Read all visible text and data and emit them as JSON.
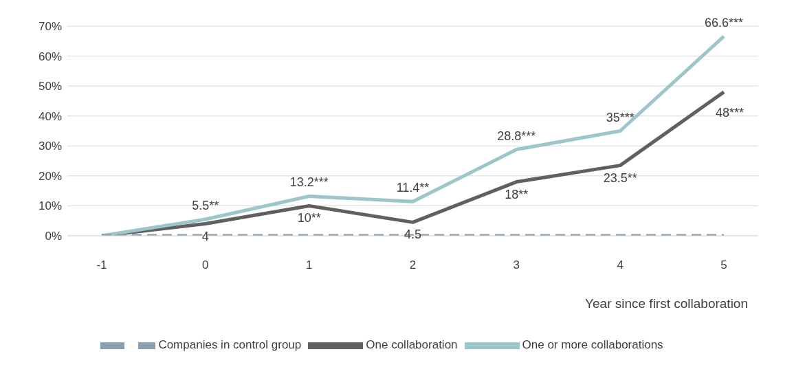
{
  "chart_data": {
    "type": "line",
    "xlabel": "Year since first collaboration",
    "categories": [
      "-1",
      "0",
      "1",
      "2",
      "3",
      "4",
      "5"
    ],
    "series": [
      {
        "name": "One collaboration",
        "color": "#606060",
        "values": [
          0,
          4,
          10,
          4.5,
          18,
          23.5,
          48
        ],
        "value_labels": [
          null,
          "4",
          "10**",
          "4.5",
          "18**",
          "23.5**",
          "48***"
        ]
      },
      {
        "name": "One or more collaborations",
        "color": "#9dc6ca",
        "values": [
          0,
          5.5,
          13.2,
          11.4,
          28.8,
          35,
          66.6
        ],
        "value_labels": [
          null,
          "5.5**",
          "13.2***",
          "11.4**",
          "28.8***",
          "35***",
          "66.6***"
        ]
      },
      {
        "name": "Companies in control group",
        "color": "#8aa0b0",
        "values": [
          0,
          0,
          0,
          0,
          0,
          0,
          0
        ],
        "line_style": "dashed"
      }
    ],
    "ylim": [
      0,
      70
    ],
    "yticks": [
      {
        "value": 0,
        "label": "0%"
      },
      {
        "value": 10,
        "label": "10%"
      },
      {
        "value": 20,
        "label": "20%"
      },
      {
        "value": 30,
        "label": "30%"
      },
      {
        "value": 40,
        "label": "40%"
      },
      {
        "value": 50,
        "label": "50%"
      },
      {
        "value": 60,
        "label": "60%"
      },
      {
        "value": 70,
        "label": "70%"
      }
    ],
    "grid": "y",
    "legend": "bottom",
    "marker": "none"
  }
}
